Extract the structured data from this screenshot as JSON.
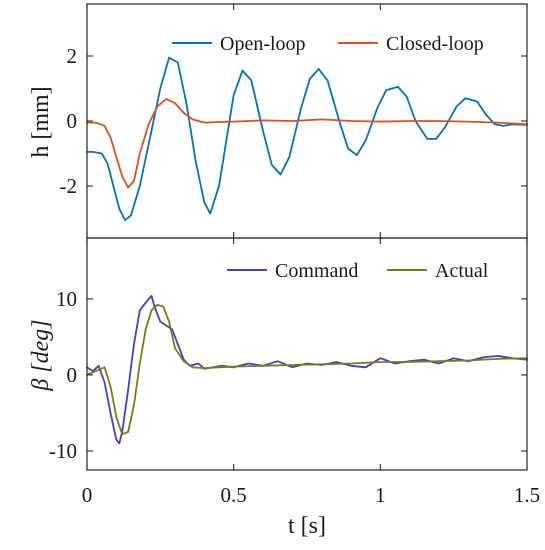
{
  "chart_data": [
    {
      "type": "line",
      "panel": "top",
      "ylabel": "h [mm]",
      "xlim": [
        0,
        1.5
      ],
      "ylim": [
        -3.6,
        3.6
      ],
      "y_ticks": [
        -2,
        0,
        2
      ],
      "y_tick_labels": [
        "-2",
        "0",
        "2"
      ],
      "x_ticks": [
        0,
        0.5,
        1,
        1.5
      ],
      "legend": {
        "position": "top-right"
      },
      "series": [
        {
          "name": "Open-loop",
          "color": "#0072BD",
          "x": [
            0,
            0.02,
            0.05,
            0.07,
            0.09,
            0.11,
            0.13,
            0.15,
            0.18,
            0.22,
            0.25,
            0.28,
            0.31,
            0.34,
            0.37,
            0.4,
            0.42,
            0.45,
            0.5,
            0.53,
            0.56,
            0.6,
            0.63,
            0.66,
            0.69,
            0.73,
            0.76,
            0.79,
            0.82,
            0.86,
            0.89,
            0.92,
            0.95,
            0.99,
            1.02,
            1.06,
            1.09,
            1.12,
            1.16,
            1.19,
            1.22,
            1.26,
            1.29,
            1.33,
            1.36,
            1.39,
            1.42,
            1.45,
            1.5
          ],
          "y": [
            -0.95,
            -0.95,
            -1.0,
            -1.3,
            -2.0,
            -2.7,
            -3.05,
            -2.9,
            -2.0,
            -0.3,
            1.0,
            1.95,
            1.8,
            0.5,
            -1.2,
            -2.5,
            -2.85,
            -2.0,
            0.8,
            1.55,
            1.25,
            -0.3,
            -1.35,
            -1.65,
            -1.1,
            0.4,
            1.3,
            1.6,
            1.25,
            0.0,
            -0.85,
            -1.05,
            -0.6,
            0.4,
            0.95,
            1.05,
            0.75,
            0.0,
            -0.55,
            -0.55,
            -0.2,
            0.45,
            0.7,
            0.6,
            0.2,
            -0.1,
            -0.15,
            -0.1,
            -0.12
          ]
        },
        {
          "name": "Closed-loop",
          "color": "#D95319",
          "x": [
            0,
            0.03,
            0.06,
            0.08,
            0.1,
            0.12,
            0.14,
            0.16,
            0.18,
            0.21,
            0.24,
            0.27,
            0.3,
            0.33,
            0.36,
            0.4,
            0.45,
            0.5,
            0.6,
            0.7,
            0.8,
            0.9,
            1.0,
            1.1,
            1.2,
            1.3,
            1.4,
            1.5
          ],
          "y": [
            -0.05,
            -0.05,
            -0.15,
            -0.5,
            -1.1,
            -1.7,
            -2.05,
            -1.85,
            -1.0,
            -0.1,
            0.45,
            0.68,
            0.55,
            0.25,
            0.05,
            -0.05,
            -0.03,
            -0.02,
            0.02,
            0.0,
            0.05,
            0.0,
            -0.02,
            0.0,
            0.0,
            -0.02,
            -0.05,
            -0.1
          ]
        }
      ]
    },
    {
      "type": "line",
      "panel": "bottom",
      "xlabel": "t [s]",
      "ylabel": "β [deg]",
      "xlim": [
        0,
        1.5
      ],
      "ylim": [
        -12.5,
        18
      ],
      "y_ticks": [
        -10,
        0,
        10
      ],
      "y_tick_labels": [
        "-10",
        "0",
        "10"
      ],
      "x_ticks": [
        0,
        0.5,
        1,
        1.5
      ],
      "x_tick_labels": [
        "0",
        "0.5",
        "1",
        "1.5"
      ],
      "legend": {
        "position": "top-right"
      },
      "series": [
        {
          "name": "Command",
          "color": "#4040C8",
          "x": [
            0,
            0.02,
            0.04,
            0.06,
            0.08,
            0.1,
            0.11,
            0.12,
            0.14,
            0.16,
            0.18,
            0.2,
            0.22,
            0.23,
            0.25,
            0.27,
            0.29,
            0.31,
            0.33,
            0.35,
            0.38,
            0.4,
            0.43,
            0.46,
            0.5,
            0.55,
            0.6,
            0.65,
            0.7,
            0.75,
            0.8,
            0.85,
            0.9,
            0.95,
            1.0,
            1.05,
            1.1,
            1.15,
            1.2,
            1.25,
            1.3,
            1.35,
            1.4,
            1.45,
            1.5
          ],
          "y": [
            1.0,
            0.5,
            1.2,
            -1.0,
            -5.0,
            -8.5,
            -9.0,
            -7.5,
            -2.0,
            4.0,
            8.5,
            9.5,
            10.4,
            9.0,
            7.0,
            6.5,
            6.0,
            4.0,
            2.0,
            1.2,
            1.5,
            0.8,
            1.0,
            1.2,
            1.0,
            1.5,
            1.2,
            1.8,
            1.0,
            1.5,
            1.3,
            1.7,
            1.2,
            1.0,
            2.2,
            1.5,
            1.8,
            2.0,
            1.5,
            2.2,
            1.8,
            2.3,
            2.5,
            2.2,
            2.0
          ]
        },
        {
          "name": "Actual",
          "color": "#7E7A12",
          "x": [
            0,
            0.03,
            0.06,
            0.08,
            0.1,
            0.12,
            0.14,
            0.16,
            0.18,
            0.2,
            0.22,
            0.24,
            0.26,
            0.28,
            0.3,
            0.33,
            0.36,
            0.4,
            0.45,
            0.5,
            0.6,
            0.7,
            0.8,
            0.9,
            1.0,
            1.1,
            1.2,
            1.3,
            1.4,
            1.5
          ],
          "y": [
            0.0,
            0.5,
            1.0,
            -1.5,
            -5.5,
            -7.8,
            -7.5,
            -4.0,
            1.5,
            6.0,
            8.5,
            9.2,
            9.0,
            7.0,
            3.5,
            1.8,
            1.0,
            0.9,
            1.0,
            1.1,
            1.2,
            1.3,
            1.4,
            1.5,
            1.7,
            1.7,
            1.8,
            1.9,
            2.1,
            2.2
          ]
        }
      ]
    }
  ]
}
